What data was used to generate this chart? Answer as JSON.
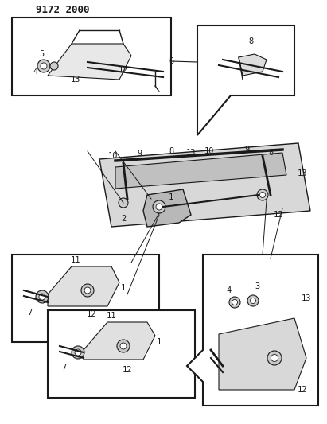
{
  "title": "9172 2000",
  "bg_color": "#ffffff",
  "line_color": "#1a1a1a",
  "title_fontsize": 9,
  "label_fontsize": 7.5,
  "fig_width": 4.11,
  "fig_height": 5.33,
  "dpi": 100
}
